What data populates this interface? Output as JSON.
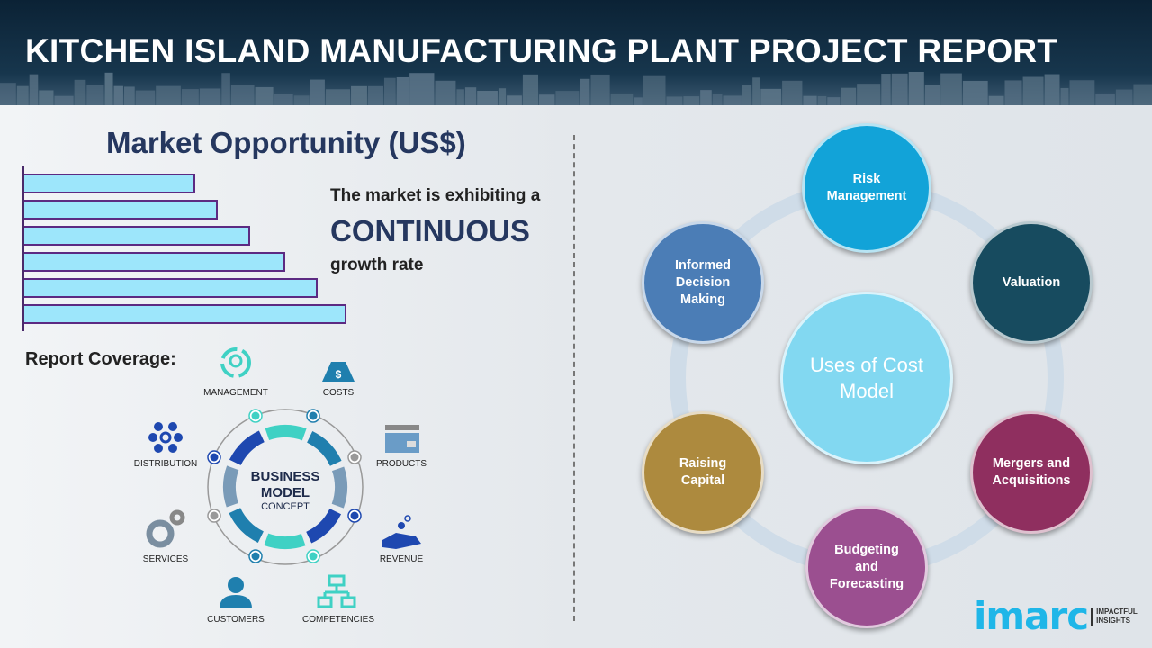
{
  "header": {
    "title": "KITCHEN ISLAND MANUFACTURING PLANT PROJECT REPORT"
  },
  "market": {
    "title": "Market Opportunity (US$)",
    "bar_relative_values": [
      53,
      60,
      70,
      81,
      91,
      100
    ],
    "line1": "The market is exhibiting a",
    "line2": "CONTINUOUS",
    "line3": "growth rate",
    "bar_fill": "#9de6fb",
    "bar_border": "#5c2a82"
  },
  "coverage": {
    "title": "Report Coverage:",
    "center_line1": "BUSINESS",
    "center_line2": "MODEL",
    "center_line3": "CONCEPT",
    "items": [
      {
        "label": "MANAGEMENT",
        "icon": "lightbulb-cycle-icon"
      },
      {
        "label": "COSTS",
        "icon": "money-bag-icon"
      },
      {
        "label": "DISTRIBUTION",
        "icon": "network-icon"
      },
      {
        "label": "PRODUCTS",
        "icon": "box-icon"
      },
      {
        "label": "SERVICES",
        "icon": "gears-icon"
      },
      {
        "label": "REVENUE",
        "icon": "hand-coins-icon"
      },
      {
        "label": "CUSTOMERS",
        "icon": "person-icon"
      },
      {
        "label": "COMPETENCIES",
        "icon": "org-chart-icon"
      }
    ]
  },
  "uses": {
    "center": "Uses of Cost Model",
    "nodes": [
      {
        "label": "Risk Management",
        "color": "#12a3d8"
      },
      {
        "label": "Valuation",
        "color": "#174b5f"
      },
      {
        "label": "Mergers and Acquisitions",
        "color": "#8f2f5f"
      },
      {
        "label": "Budgeting and Forecasting",
        "color": "#9b4f90"
      },
      {
        "label": "Raising Capital",
        "color": "#ad8a3e"
      },
      {
        "label": "Informed Decision Making",
        "color": "#4b7db6"
      }
    ]
  },
  "logo": {
    "word": "imarc",
    "tag1": "IMPACTFUL",
    "tag2": "INSIGHTS"
  }
}
